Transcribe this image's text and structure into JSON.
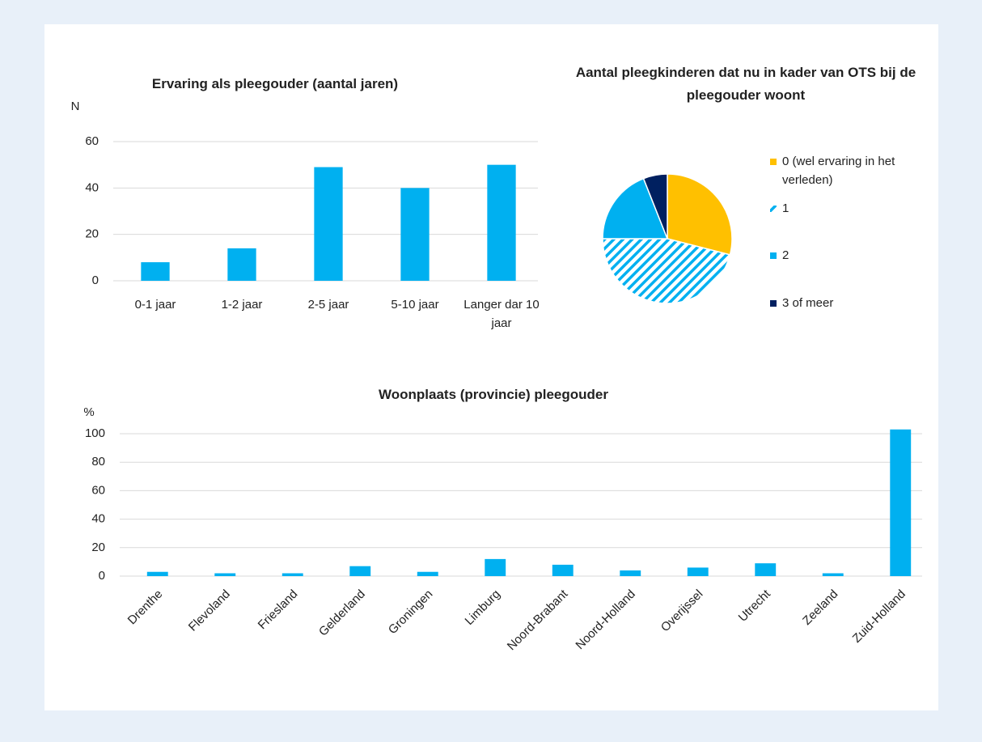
{
  "chart_data": [
    {
      "type": "bar",
      "title": "Ervaring als pleegouder (aantal jaren)",
      "y_label": "N",
      "categories": [
        "0-1 jaar",
        "1-2 jaar",
        "2-5 jaar",
        "5-10 jaar",
        "Langer dar 10 jaar"
      ],
      "values": [
        8,
        14,
        49,
        40,
        50
      ],
      "color": "#00b0f0",
      "ylim": [
        0,
        60
      ],
      "yticks": [
        0,
        20,
        40,
        60
      ],
      "grid": true
    },
    {
      "type": "pie",
      "title": "Aantal pleegkinderen dat nu in kader van OTS bij de pleegouder woont",
      "categories": [
        "0 (wel ervaring in het verleden)",
        "1",
        "2",
        "3 of meer"
      ],
      "values": [
        29,
        46,
        19,
        6
      ],
      "colors": [
        "#ffc000",
        "#00b0f0",
        "#00b0f0",
        "#002060"
      ],
      "hatched": [
        false,
        true,
        false,
        false
      ],
      "legend": "right"
    },
    {
      "type": "bar",
      "title": "Woonplaats (provincie) pleegouder",
      "y_label": "%",
      "categories": [
        "Drenthe",
        "Flevoland",
        "Friesland",
        "Gelderland",
        "Groningen",
        "Limburg",
        "Noord-Brabant",
        "Noord-Holland",
        "Overijssel",
        "Utrecht",
        "Zeeland",
        "Zuid-Holland"
      ],
      "values": [
        3,
        2,
        2,
        7,
        3,
        12,
        8,
        4,
        6,
        9,
        2,
        103
      ],
      "color": "#00b0f0",
      "ylim": [
        0,
        100
      ],
      "yticks": [
        0,
        20,
        40,
        60,
        80,
        100
      ],
      "grid": true,
      "rotate_labels": true
    }
  ]
}
